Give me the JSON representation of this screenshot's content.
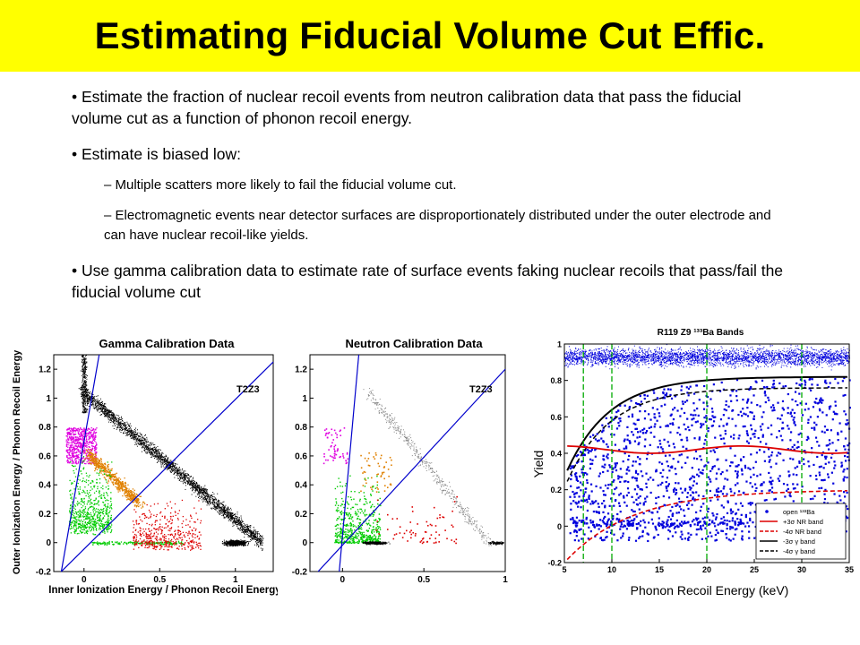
{
  "slide": {
    "title": "Estimating Fiducial Volume Cut Effic.",
    "bullets": [
      "• Estimate the fraction of nuclear recoil events from neutron calibration data that pass the fiducial volume cut as a function of phonon recoil energy.",
      "• Estimate is biased low:",
      "• Use gamma calibration data to estimate rate of surface events faking nuclear recoils that pass/fail the fiducial volume cut"
    ],
    "sub_bullets": [
      "– Multiple scatters more likely to fail the fiducial volume cut.",
      "– Electromagnetic events near detector surfaces are disproportionately distributed under the outer electrode and can have nuclear recoil-like yields."
    ]
  },
  "chart_data": [
    {
      "type": "scatter",
      "title": "Gamma Calibration Data",
      "xlabel": "Inner Ionization Energy / Phonon Recoil Energy",
      "ylabel": "Outer Ionization Energy / Phonon Recoil Energy",
      "xlim": [
        -0.2,
        1.25
      ],
      "ylim": [
        -0.2,
        1.3
      ],
      "xticks": [
        "0",
        "0.5",
        "1"
      ],
      "yticks": [
        "-0.2",
        "0",
        "0.2",
        "0.4",
        "0.6",
        "0.8",
        "1",
        "1.2"
      ],
      "annotation": "T2Z3",
      "colors": {
        "black": "#000000",
        "magenta": "#e000e0",
        "green": "#00cc00",
        "orange": "#e08000",
        "red": "#dd0000",
        "line": "#0000cc"
      },
      "cut_lines": [
        {
          "x": [
            -0.15,
            0.1
          ],
          "y": [
            -0.2,
            1.3
          ]
        },
        {
          "x": [
            -0.15,
            1.25
          ],
          "y": [
            -0.2,
            1.25
          ]
        }
      ]
    },
    {
      "type": "scatter",
      "title": "Neutron Calibration Data",
      "xlim": [
        -0.2,
        1.0
      ],
      "ylim": [
        -0.2,
        1.3
      ],
      "xticks": [
        "0",
        "0.5",
        "1"
      ],
      "yticks": [
        "-0.2",
        "0",
        "0.2",
        "0.4",
        "0.6",
        "0.8",
        "1",
        "1.2"
      ],
      "annotation": "T2Z3",
      "colors": {
        "gray": "#888888",
        "magenta": "#e000e0",
        "green": "#00cc00",
        "orange": "#e08000",
        "red": "#dd0000",
        "black": "#000000",
        "line": "#0000cc"
      },
      "cut_lines": [
        {
          "x": [
            -0.02,
            0.1
          ],
          "y": [
            -0.2,
            1.3
          ]
        },
        {
          "x": [
            -0.15,
            1.0
          ],
          "y": [
            -0.2,
            1.2
          ]
        }
      ]
    },
    {
      "type": "scatter",
      "title": "R119 Z9 ¹³³Ba Bands",
      "xlabel": "Phonon Recoil Energy (keV)",
      "ylabel": "Yield",
      "xlim": [
        5,
        35
      ],
      "ylim": [
        -0.2,
        1.0
      ],
      "xticks": [
        "5",
        "10",
        "15",
        "20",
        "25",
        "30",
        "35"
      ],
      "yticks": [
        "-0.2",
        "0",
        "0.2",
        "0.4",
        "0.6",
        "0.8",
        "1"
      ],
      "vertical_lines_x": [
        7,
        10,
        20,
        30
      ],
      "colors": {
        "points": "#0000dd",
        "nr": "#dd0000",
        "gamma": "#000000",
        "vlines": "#00aa00"
      },
      "legend": {
        "placement": "bottom-right",
        "entries": [
          "open ¹³³Ba",
          "+3σ NR band",
          "-4σ NR band",
          "-3σ γ band",
          "-4σ γ band"
        ]
      }
    }
  ]
}
